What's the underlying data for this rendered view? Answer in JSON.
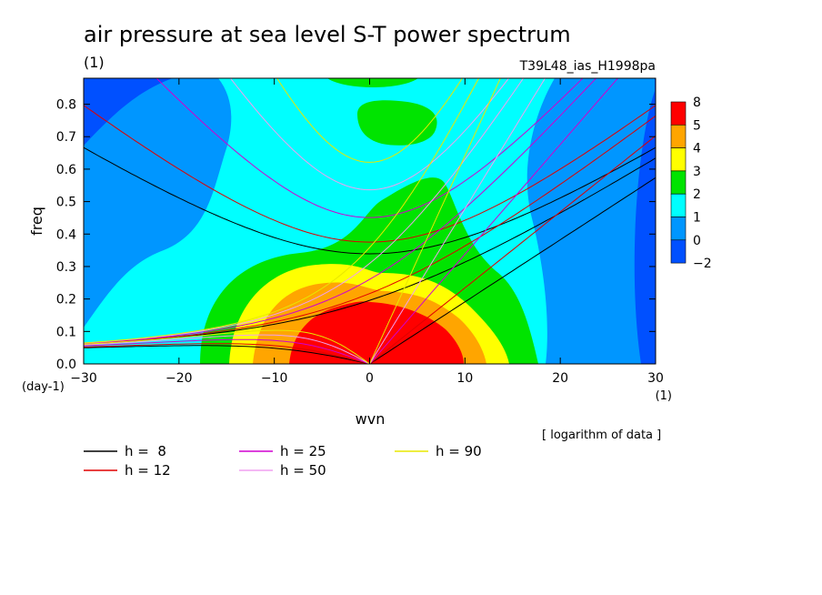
{
  "chart_data": {
    "type": "heatmap",
    "title": "air pressure at sea level S-T power spectrum",
    "subtitle_left": "(1)",
    "subtitle_right": "T39L48_ias_H1998pa",
    "xlabel": "wvn",
    "ylabel": "freq",
    "x_unit": "(1)",
    "y_unit": "(day-1)",
    "xlim": [
      -30,
      30
    ],
    "ylim": [
      0.0,
      0.88
    ],
    "xticks": [
      -30,
      -20,
      -10,
      0,
      10,
      20,
      30
    ],
    "yticks": [
      0.0,
      0.1,
      0.2,
      0.3,
      0.4,
      0.5,
      0.6,
      0.7,
      0.8
    ],
    "ytick_labels": [
      "0.0",
      "0.1",
      "0.2",
      "0.3",
      "0.4",
      "0.5",
      "0.6",
      "0.7",
      "0.8"
    ],
    "colorbar_ticks": [
      "8",
      "5",
      "4",
      "3",
      "2",
      "1",
      "0",
      "-2"
    ],
    "colorbar_colors": [
      "#ff0000",
      "#ffa500",
      "#ffff00",
      "#00e400",
      "#00ffff",
      "#0096ff",
      "#0050ff"
    ],
    "contour_levels": [
      -2,
      0,
      1,
      2,
      3,
      4,
      5,
      8
    ],
    "annotation": "[ logarithm of data ]",
    "dispersion_curves": [
      {
        "label": "h =  8",
        "color": "#000000"
      },
      {
        "label": "h = 12",
        "color": "#e00000"
      },
      {
        "label": "h = 25",
        "color": "#d000d0"
      },
      {
        "label": "h = 50",
        "color": "#f0a0f0"
      },
      {
        "label": "h = 90",
        "color": "#e8e800"
      }
    ]
  }
}
